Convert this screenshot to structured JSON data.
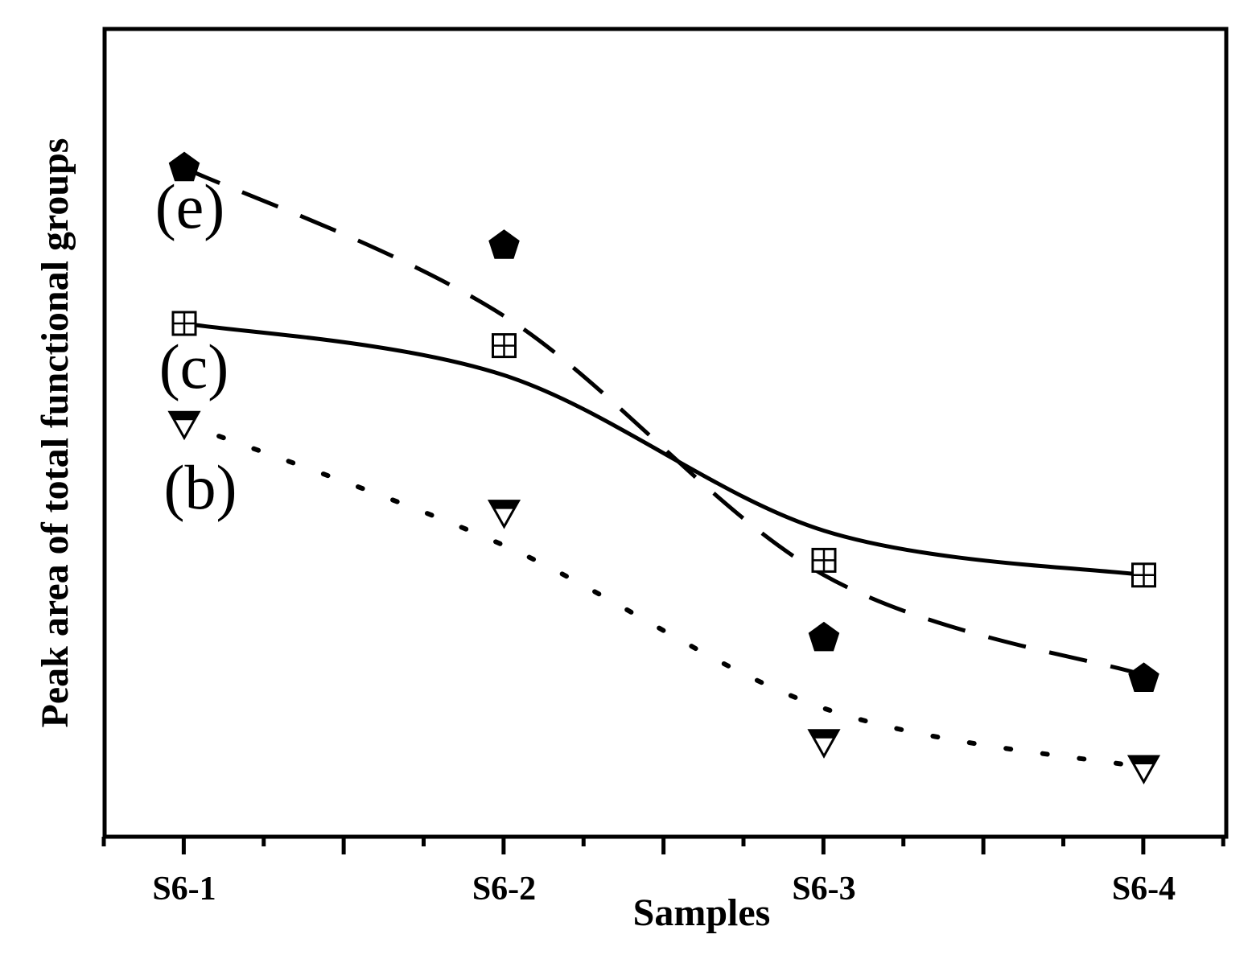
{
  "chart_data": {
    "type": "line",
    "title": "",
    "xlabel": "Samples",
    "ylabel": "Peak area of total functional groups",
    "categories": [
      "S6-1",
      "S6-2",
      "S6-3",
      "S6-4"
    ],
    "ylim": [
      0,
      100
    ],
    "grid": false,
    "legend": "none",
    "series": [
      {
        "name": "(e)",
        "label": "(e)",
        "marker": "pentagon-filled",
        "line_style": "dashed",
        "values": [
          86.0,
          75.5,
          22.5,
          17.0
        ],
        "fit": [
          86.0,
          66.0,
          31.0,
          17.5
        ]
      },
      {
        "name": "(c)",
        "label": "(c)",
        "marker": "square-crossed",
        "line_style": "solid",
        "values": [
          65.0,
          62.0,
          33.0,
          31.0
        ],
        "fit": [
          65.0,
          58.0,
          37.0,
          31.0
        ]
      },
      {
        "name": "(b)",
        "label": "(b)",
        "marker": "triangle-down-half-filled",
        "line_style": "dotted",
        "values": [
          51.5,
          39.5,
          8.5,
          5.0
        ],
        "fit": [
          51.5,
          35.0,
          13.0,
          5.0
        ]
      }
    ]
  }
}
